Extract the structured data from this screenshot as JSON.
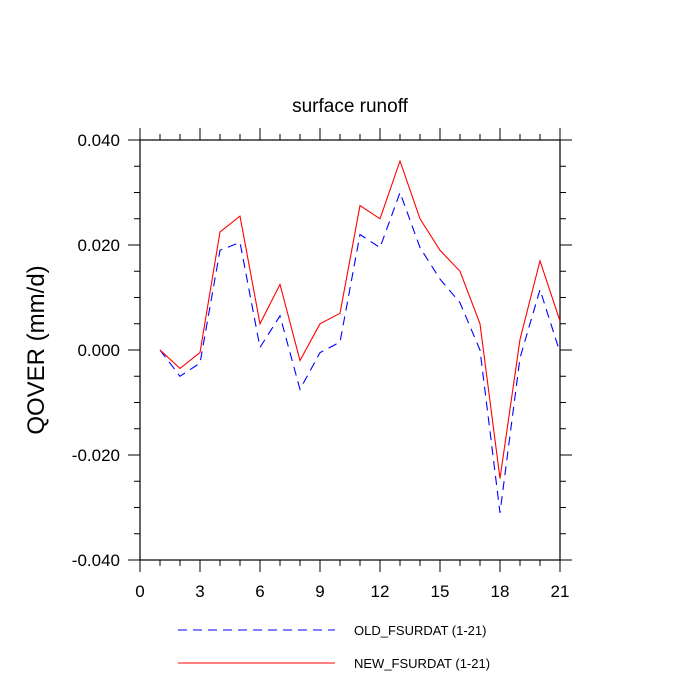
{
  "chart_data": {
    "type": "line",
    "title": "surface runoff",
    "xlabel": "",
    "ylabel": "QOVER  (mm/d)",
    "xlim": [
      0,
      21
    ],
    "ylim": [
      -0.04,
      0.04
    ],
    "x_ticks": [
      0,
      3,
      6,
      9,
      12,
      15,
      18,
      21
    ],
    "x_tick_labels": [
      "0",
      "3",
      "6",
      "9",
      "12",
      "15",
      "18",
      "21"
    ],
    "y_ticks": [
      -0.04,
      -0.02,
      0.0,
      0.02,
      0.04
    ],
    "y_tick_labels": [
      "-0.040",
      "-0.020",
      "0.000",
      "0.020",
      "0.040"
    ],
    "grid": false,
    "legend_position": "bottom",
    "x": [
      1,
      2,
      3,
      4,
      5,
      6,
      7,
      8,
      9,
      10,
      11,
      12,
      13,
      14,
      15,
      16,
      17,
      18,
      19,
      20,
      21
    ],
    "series": [
      {
        "name": "OLD_FSURDAT (1-21)",
        "color": "#0000ff",
        "dash": "dashed",
        "values": [
          0.0,
          -0.005,
          -0.0025,
          0.019,
          0.0205,
          0.0005,
          0.0065,
          -0.0075,
          -0.0005,
          0.0015,
          0.022,
          0.0195,
          0.03,
          0.0195,
          0.0135,
          0.009,
          0.0,
          -0.031,
          -0.0015,
          0.0115,
          -0.0005
        ]
      },
      {
        "name": "NEW_FSURDAT (1-21)",
        "color": "#ff0000",
        "dash": "solid",
        "values": [
          0.0,
          -0.0035,
          -0.0005,
          0.0225,
          0.0255,
          0.005,
          0.0125,
          -0.002,
          0.005,
          0.007,
          0.0275,
          0.025,
          0.036,
          0.025,
          0.019,
          0.015,
          0.005,
          -0.0245,
          0.002,
          0.017,
          0.0055
        ]
      }
    ]
  }
}
